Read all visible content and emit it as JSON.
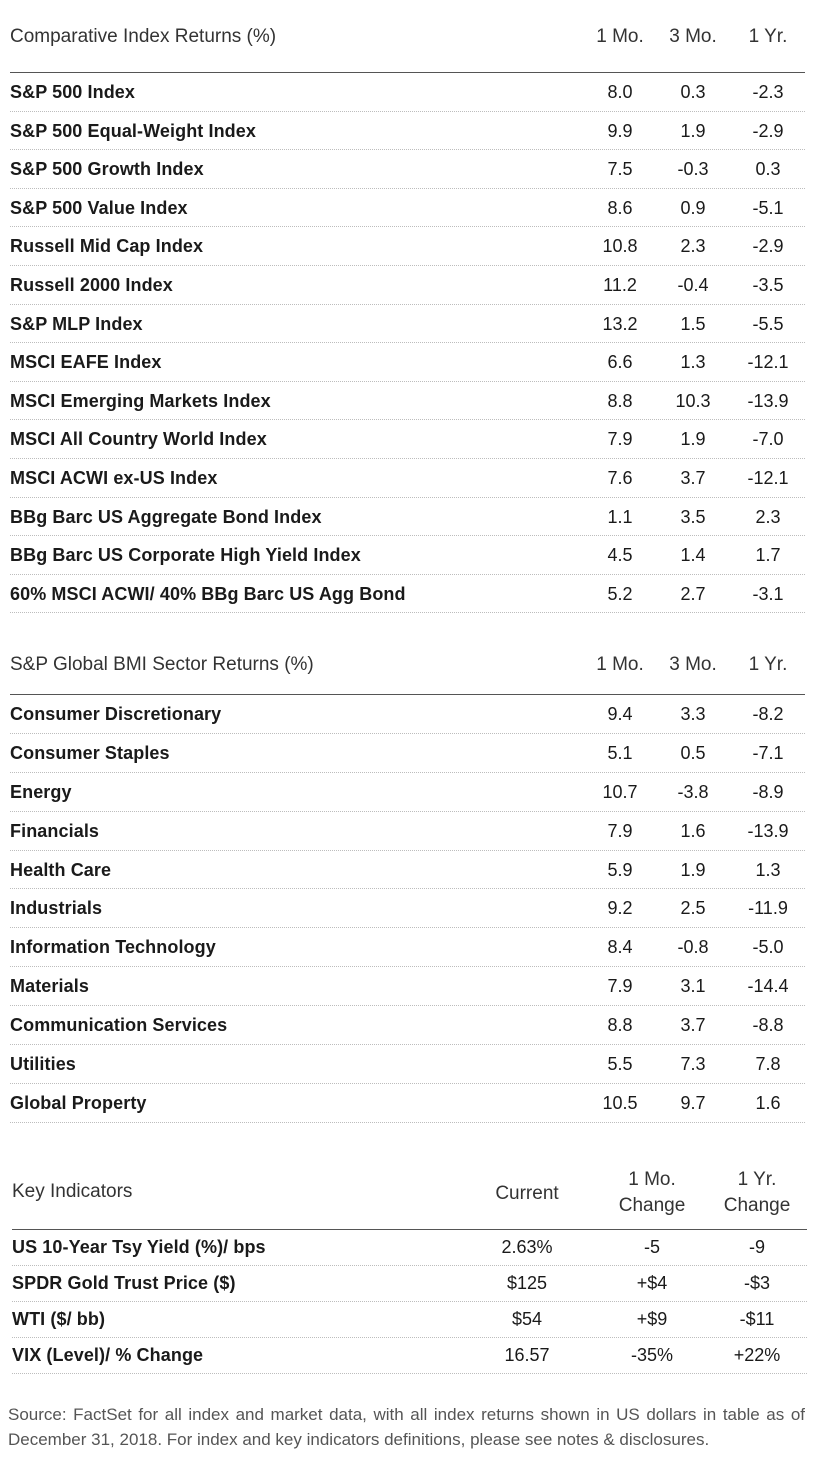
{
  "comparative": {
    "title": "Comparative Index Returns (%)",
    "columns": [
      "1 Mo.",
      "3 Mo.",
      "1 Yr."
    ],
    "rows": [
      {
        "name": "S&P 500 Index",
        "m1": "8.0",
        "m3": "0.3",
        "y1": "-2.3"
      },
      {
        "name": "S&P 500 Equal-Weight Index",
        "m1": "9.9",
        "m3": "1.9",
        "y1": "-2.9"
      },
      {
        "name": "S&P 500 Growth Index",
        "m1": "7.5",
        "m3": "-0.3",
        "y1": "0.3"
      },
      {
        "name": "S&P 500 Value Index",
        "m1": "8.6",
        "m3": "0.9",
        "y1": "-5.1"
      },
      {
        "name": "Russell Mid Cap Index",
        "m1": "10.8",
        "m3": "2.3",
        "y1": "-2.9"
      },
      {
        "name": "Russell 2000 Index",
        "m1": "11.2",
        "m3": "-0.4",
        "y1": "-3.5"
      },
      {
        "name": "S&P MLP Index",
        "m1": "13.2",
        "m3": "1.5",
        "y1": "-5.5"
      },
      {
        "name": "MSCI EAFE Index",
        "m1": "6.6",
        "m3": "1.3",
        "y1": "-12.1"
      },
      {
        "name": "MSCI Emerging Markets Index",
        "m1": "8.8",
        "m3": "10.3",
        "y1": "-13.9"
      },
      {
        "name": "MSCI All Country World Index",
        "m1": "7.9",
        "m3": "1.9",
        "y1": "-7.0"
      },
      {
        "name": "MSCI ACWI ex-US Index",
        "m1": "7.6",
        "m3": "3.7",
        "y1": "-12.1"
      },
      {
        "name": "BBg Barc US Aggregate Bond Index",
        "m1": "1.1",
        "m3": "3.5",
        "y1": "2.3"
      },
      {
        "name": "BBg Barc US Corporate High Yield Index",
        "m1": "4.5",
        "m3": "1.4",
        "y1": "1.7"
      },
      {
        "name": "60% MSCI ACWI/ 40% BBg Barc US Agg Bond",
        "m1": "5.2",
        "m3": "2.7",
        "y1": "-3.1"
      }
    ]
  },
  "sectors": {
    "title": "S&P Global BMI Sector Returns (%)",
    "columns": [
      "1 Mo.",
      "3 Mo.",
      "1 Yr."
    ],
    "rows": [
      {
        "name": "Consumer Discretionary",
        "m1": "9.4",
        "m3": "3.3",
        "y1": "-8.2"
      },
      {
        "name": "Consumer Staples",
        "m1": "5.1",
        "m3": "0.5",
        "y1": "-7.1"
      },
      {
        "name": "Energy",
        "m1": "10.7",
        "m3": "-3.8",
        "y1": "-8.9"
      },
      {
        "name": "Financials",
        "m1": "7.9",
        "m3": "1.6",
        "y1": "-13.9"
      },
      {
        "name": "Health Care",
        "m1": "5.9",
        "m3": "1.9",
        "y1": "1.3"
      },
      {
        "name": "Industrials",
        "m1": "9.2",
        "m3": "2.5",
        "y1": "-11.9"
      },
      {
        "name": "Information Technology",
        "m1": "8.4",
        "m3": "-0.8",
        "y1": "-5.0"
      },
      {
        "name": "Materials",
        "m1": "7.9",
        "m3": "3.1",
        "y1": "-14.4"
      },
      {
        "name": "Communication Services",
        "m1": "8.8",
        "m3": "3.7",
        "y1": "-8.8"
      },
      {
        "name": "Utilities",
        "m1": "5.5",
        "m3": "7.3",
        "y1": "7.8"
      },
      {
        "name": "Global Property",
        "m1": "10.5",
        "m3": "9.7",
        "y1": "1.6"
      }
    ]
  },
  "indicators": {
    "title": "Key Indicators",
    "col_current": "Current",
    "col_1mo_line1": "1 Mo.",
    "col_1mo_line2": "Change",
    "col_1yr_line1": "1 Yr.",
    "col_1yr_line2": "Change",
    "rows": [
      {
        "name": "US 10-Year Tsy Yield (%)/ bps",
        "current": "2.63%",
        "mo": "-5",
        "yr": "-9"
      },
      {
        "name": "SPDR Gold Trust Price ($)",
        "current": "$125",
        "mo": "+$4",
        "yr": "-$3"
      },
      {
        "name": "WTI ($/ bb)",
        "current": "$54",
        "mo": "+$9",
        "yr": "-$11"
      },
      {
        "name": "VIX (Level)/ % Change",
        "current": "16.57",
        "mo": "-35%",
        "yr": "+22%"
      }
    ]
  },
  "footnote": "Source: FactSet for all index and market data, with all index returns shown in US dollars in table as of December 31, 2018. For index and key indicators definitions, please see notes & disclosures."
}
